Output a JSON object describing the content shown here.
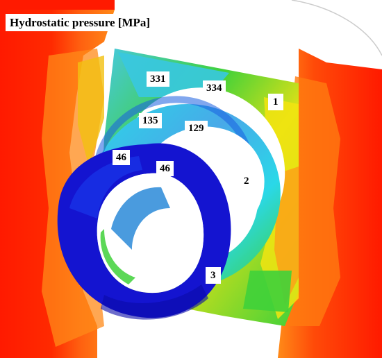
{
  "title": "Hydrostatic pressure [MPa]",
  "pressure_labels": {
    "outer_ring_top_left": "331",
    "outer_ring_top_right": "334",
    "middle_ring_left": "135",
    "middle_ring_right": "129",
    "inner_ring_left": "46",
    "inner_ring_right": "46"
  },
  "part_labels": {
    "part_1": "1",
    "part_2": "2",
    "part_3": "3"
  },
  "colors": {
    "high_pressure": "#ff1a00",
    "orange": "#ff7a10",
    "yellow": "#f2e410",
    "green": "#3fd13a",
    "cyan": "#2ad8e8",
    "light_blue": "#48a9e8",
    "blue": "#1a3ff0",
    "dark_blue": "#1010c8"
  }
}
